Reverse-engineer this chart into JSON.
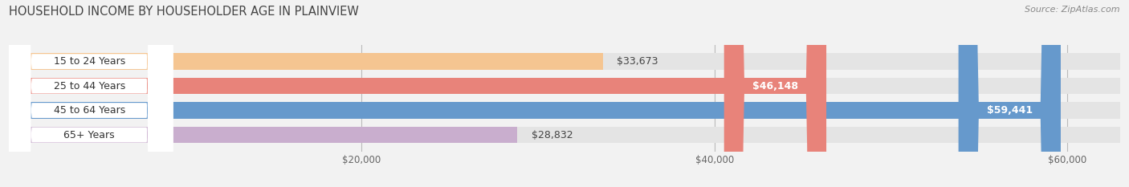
{
  "title": "HOUSEHOLD INCOME BY HOUSEHOLDER AGE IN PLAINVIEW",
  "source": "Source: ZipAtlas.com",
  "categories": [
    "15 to 24 Years",
    "25 to 44 Years",
    "45 to 64 Years",
    "65+ Years"
  ],
  "values": [
    33673,
    46148,
    59441,
    28832
  ],
  "bar_colors": [
    "#f5c591",
    "#e8837a",
    "#6699cc",
    "#c9aece"
  ],
  "bar_bg_color": "#e4e4e4",
  "value_labels": [
    "$33,673",
    "$46,148",
    "$59,441",
    "$28,832"
  ],
  "value_label_inside": [
    false,
    true,
    true,
    false
  ],
  "xmin": 0,
  "xmax": 63000,
  "xticks": [
    20000,
    40000,
    60000
  ],
  "xticklabels": [
    "$20,000",
    "$40,000",
    "$60,000"
  ],
  "background_color": "#f2f2f2",
  "bar_bg_full": 63000,
  "title_fontsize": 10.5,
  "source_fontsize": 8,
  "bar_fontsize": 9,
  "tick_fontsize": 8.5
}
